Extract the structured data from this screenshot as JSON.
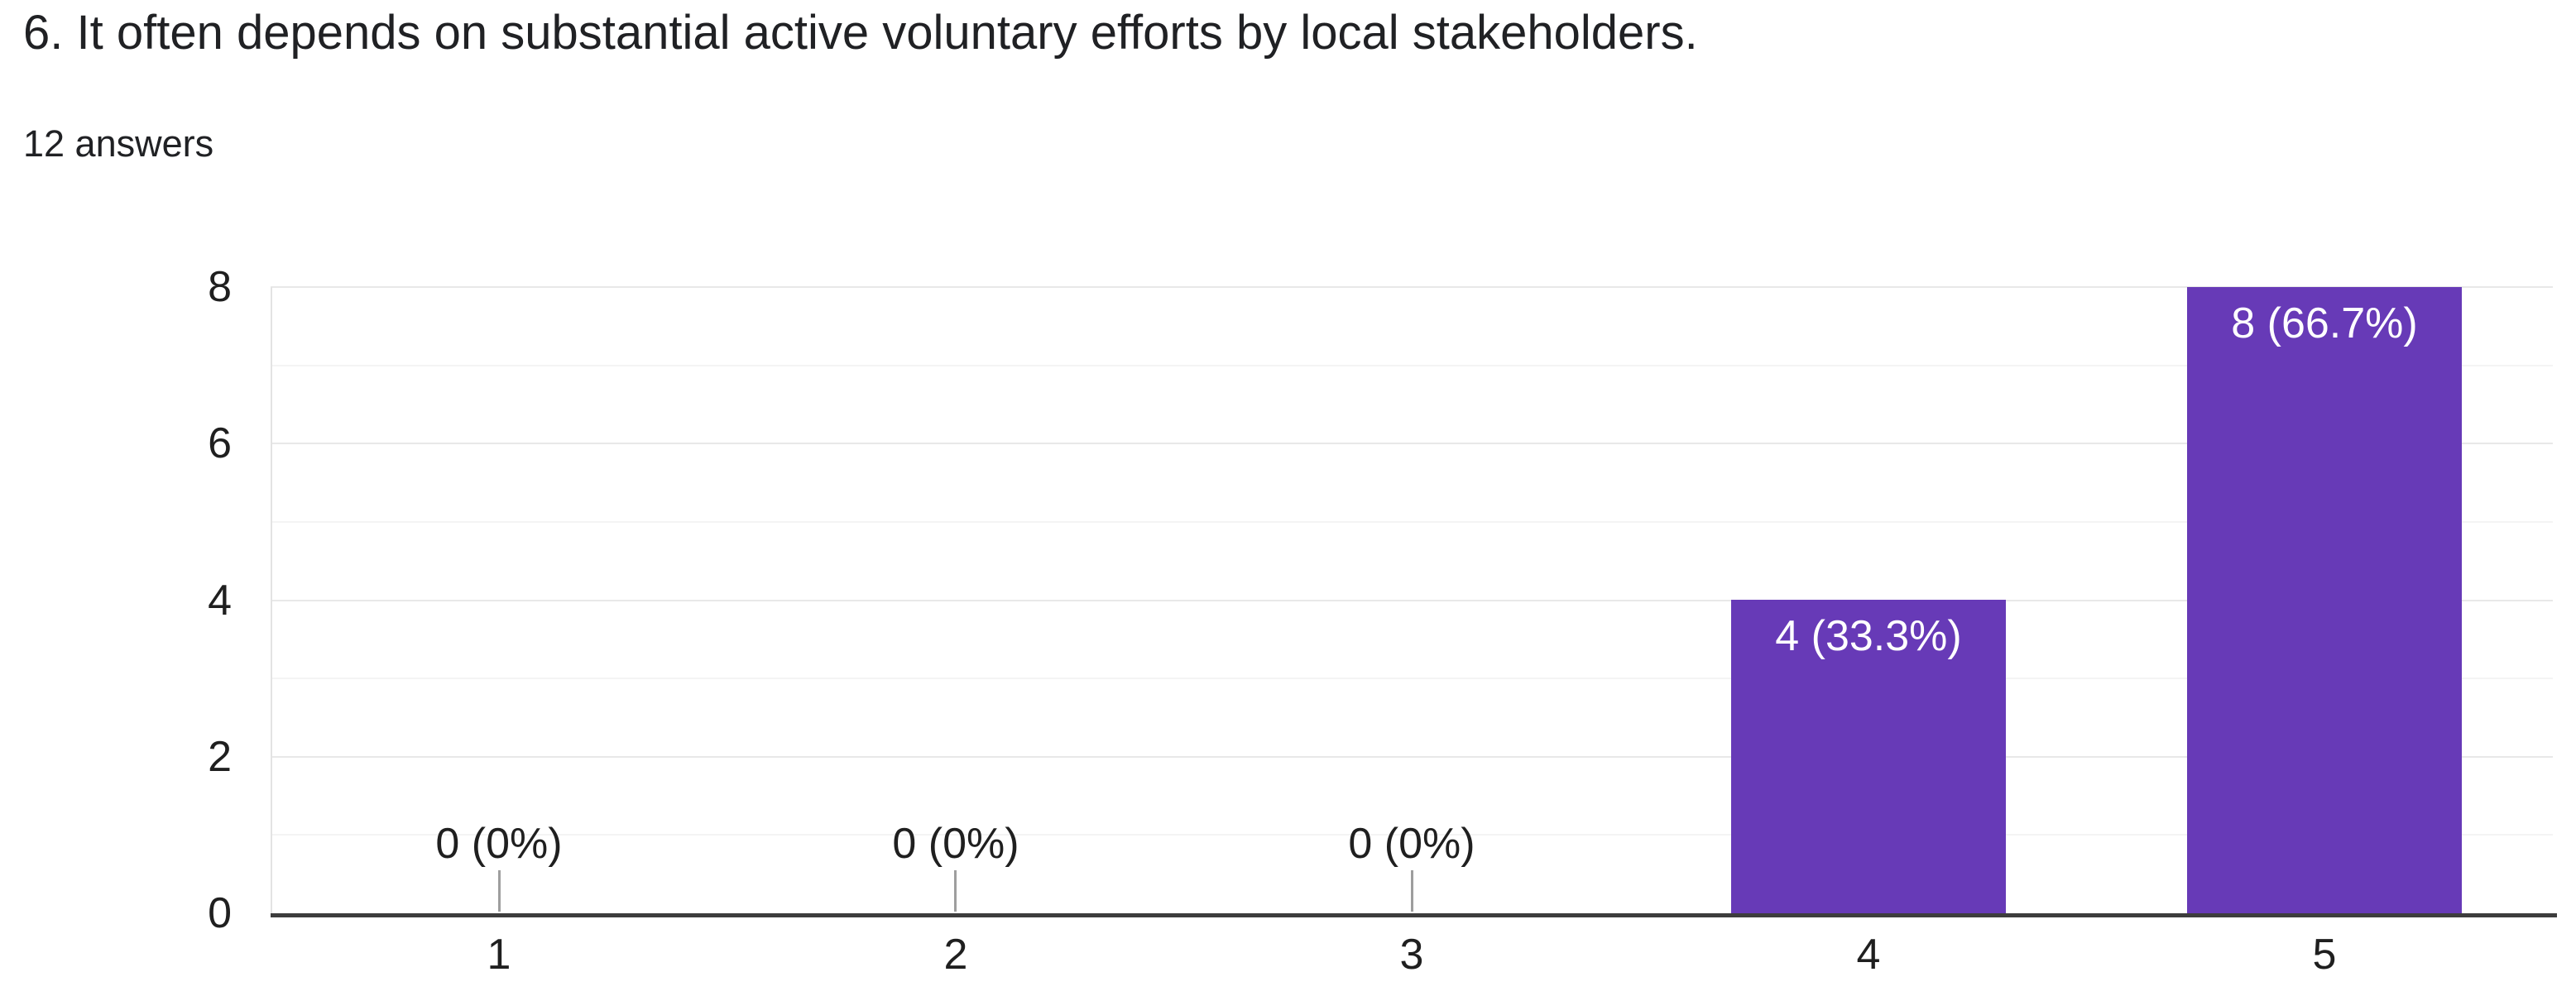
{
  "page": {
    "background": "#ffffff"
  },
  "chart_data": {
    "type": "bar",
    "title": "6. It often depends on substantial active voluntary efforts by local stakeholders.",
    "subtitle": "12 answers",
    "total_answers": 12,
    "categories": [
      "1",
      "2",
      "3",
      "4",
      "5"
    ],
    "values": [
      0,
      0,
      0,
      4,
      8
    ],
    "value_labels": [
      "0 (0%)",
      "0 (0%)",
      "0 (0%)",
      "4 (33.3%)",
      "8 (66.7%)"
    ],
    "xlabel": "",
    "ylabel": "",
    "ylim": [
      0,
      8
    ],
    "yticks": [
      0,
      2,
      4,
      6,
      8
    ],
    "minor_yticks": [
      1,
      3,
      5,
      7
    ],
    "grid": true,
    "legend": "none",
    "colors": {
      "bar": "#673ab7",
      "bar_label": "#ffffff",
      "axis_text": "#1f1f1f",
      "title_text": "#202124",
      "baseline": "#3d3d3d",
      "major_grid": "#e8e8e8",
      "minor_grid": "#f4f4f4",
      "zero_stub": "#9e9e9e",
      "plot_edge": "#e3e3e3"
    }
  }
}
